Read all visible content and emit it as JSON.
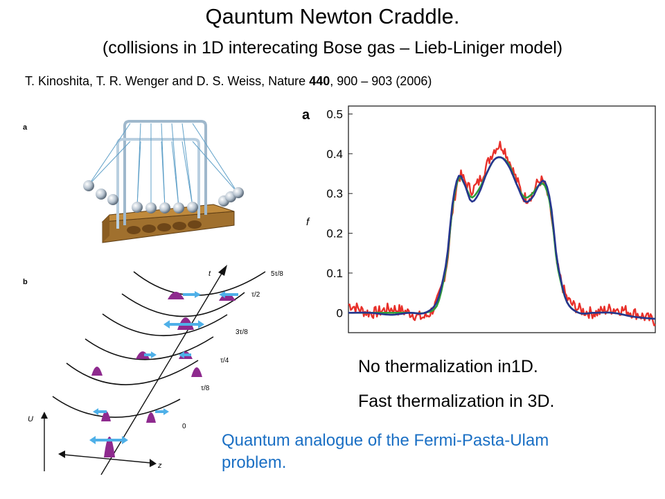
{
  "title": "Qauntum Newton Craddle.",
  "subtitle": "(collisions in 1D interecating Bose gas – Lieb-Liniger model)",
  "citation": {
    "authors": "T. Kinoshita, T. R. Wenger and D. S. Weiss, Nature ",
    "volume": "440",
    "pages": ", 900 – 903 (2006)"
  },
  "figure_left": {
    "panel_a": "a",
    "panel_b": "b",
    "axis_t": "t",
    "axis_u": "U",
    "axis_z": "z",
    "time_labels": [
      "5τ/8",
      "τ/2",
      "3τ/8",
      "τ/4",
      "τ/8",
      "0"
    ]
  },
  "chart_data": {
    "type": "line",
    "panel_label": "a",
    "ylabel": "f",
    "xlabel": "",
    "ylim": [
      -0.05,
      0.52
    ],
    "yticks": [
      0,
      0.1,
      0.2,
      0.3,
      0.4,
      0.5
    ],
    "ytick_labels": [
      "0",
      "0.1",
      "0.2",
      "0.3",
      "0.4",
      "0.5"
    ],
    "grid": false,
    "series": [
      {
        "color": "#e8302a",
        "noisy": true,
        "x": [
          -1,
          -0.86,
          -0.72,
          -0.6,
          -0.5,
          -0.42,
          -0.36,
          -0.32,
          -0.28,
          -0.24,
          -0.2,
          -0.15,
          -0.1,
          -0.05,
          0,
          0.05,
          0.1,
          0.15,
          0.2,
          0.24,
          0.28,
          0.32,
          0.36,
          0.42,
          0.5,
          0.6,
          0.72,
          0.86,
          1
        ],
        "y": [
          0.02,
          0.0,
          0.01,
          0.0,
          -0.01,
          0.03,
          0.12,
          0.26,
          0.34,
          0.33,
          0.31,
          0.33,
          0.37,
          0.41,
          0.42,
          0.38,
          0.33,
          0.29,
          0.3,
          0.33,
          0.32,
          0.25,
          0.12,
          0.04,
          0.01,
          0.0,
          0.01,
          0.0,
          -0.02
        ]
      },
      {
        "color": "#2e9e3a",
        "noisy": false,
        "x": [
          -1,
          -0.86,
          -0.72,
          -0.6,
          -0.5,
          -0.42,
          -0.36,
          -0.32,
          -0.28,
          -0.24,
          -0.2,
          -0.15,
          -0.1,
          -0.05,
          0,
          0.05,
          0.1,
          0.15,
          0.2,
          0.24,
          0.28,
          0.32,
          0.36,
          0.42,
          0.5,
          0.6,
          0.72,
          0.86,
          1
        ],
        "y": [
          0.0,
          0.0,
          0.0,
          0.0,
          0.0,
          0.02,
          0.12,
          0.27,
          0.34,
          0.32,
          0.29,
          0.31,
          0.35,
          0.385,
          0.39,
          0.37,
          0.32,
          0.29,
          0.3,
          0.32,
          0.32,
          0.26,
          0.12,
          0.03,
          0.0,
          0.0,
          0.0,
          -0.01,
          -0.015
        ]
      },
      {
        "color": "#27358f",
        "noisy": false,
        "x": [
          -1,
          -0.86,
          -0.72,
          -0.6,
          -0.5,
          -0.42,
          -0.36,
          -0.32,
          -0.28,
          -0.24,
          -0.2,
          -0.15,
          -0.1,
          -0.05,
          0,
          0.05,
          0.1,
          0.15,
          0.2,
          0.24,
          0.28,
          0.32,
          0.36,
          0.42,
          0.5,
          0.6,
          0.72,
          0.86,
          1
        ],
        "y": [
          0.0,
          0.0,
          -0.005,
          0.0,
          0.0,
          0.03,
          0.13,
          0.28,
          0.345,
          0.32,
          0.28,
          0.3,
          0.35,
          0.385,
          0.39,
          0.365,
          0.32,
          0.28,
          0.29,
          0.32,
          0.33,
          0.27,
          0.13,
          0.03,
          0.0,
          0.0,
          0.0,
          -0.01,
          -0.015
        ]
      }
    ]
  },
  "notes": {
    "line1": "No thermalization in1D.",
    "line2": "Fast thermalization in 3D."
  },
  "highlight": "Quantum analogue of the Fermi-Pasta-Ulam problem.",
  "colors": {
    "highlight": "#1a6fc4",
    "craddle_base": "#a0702e",
    "wave_packet": "#8e2a8e",
    "arrow": "#4fb0e8"
  }
}
